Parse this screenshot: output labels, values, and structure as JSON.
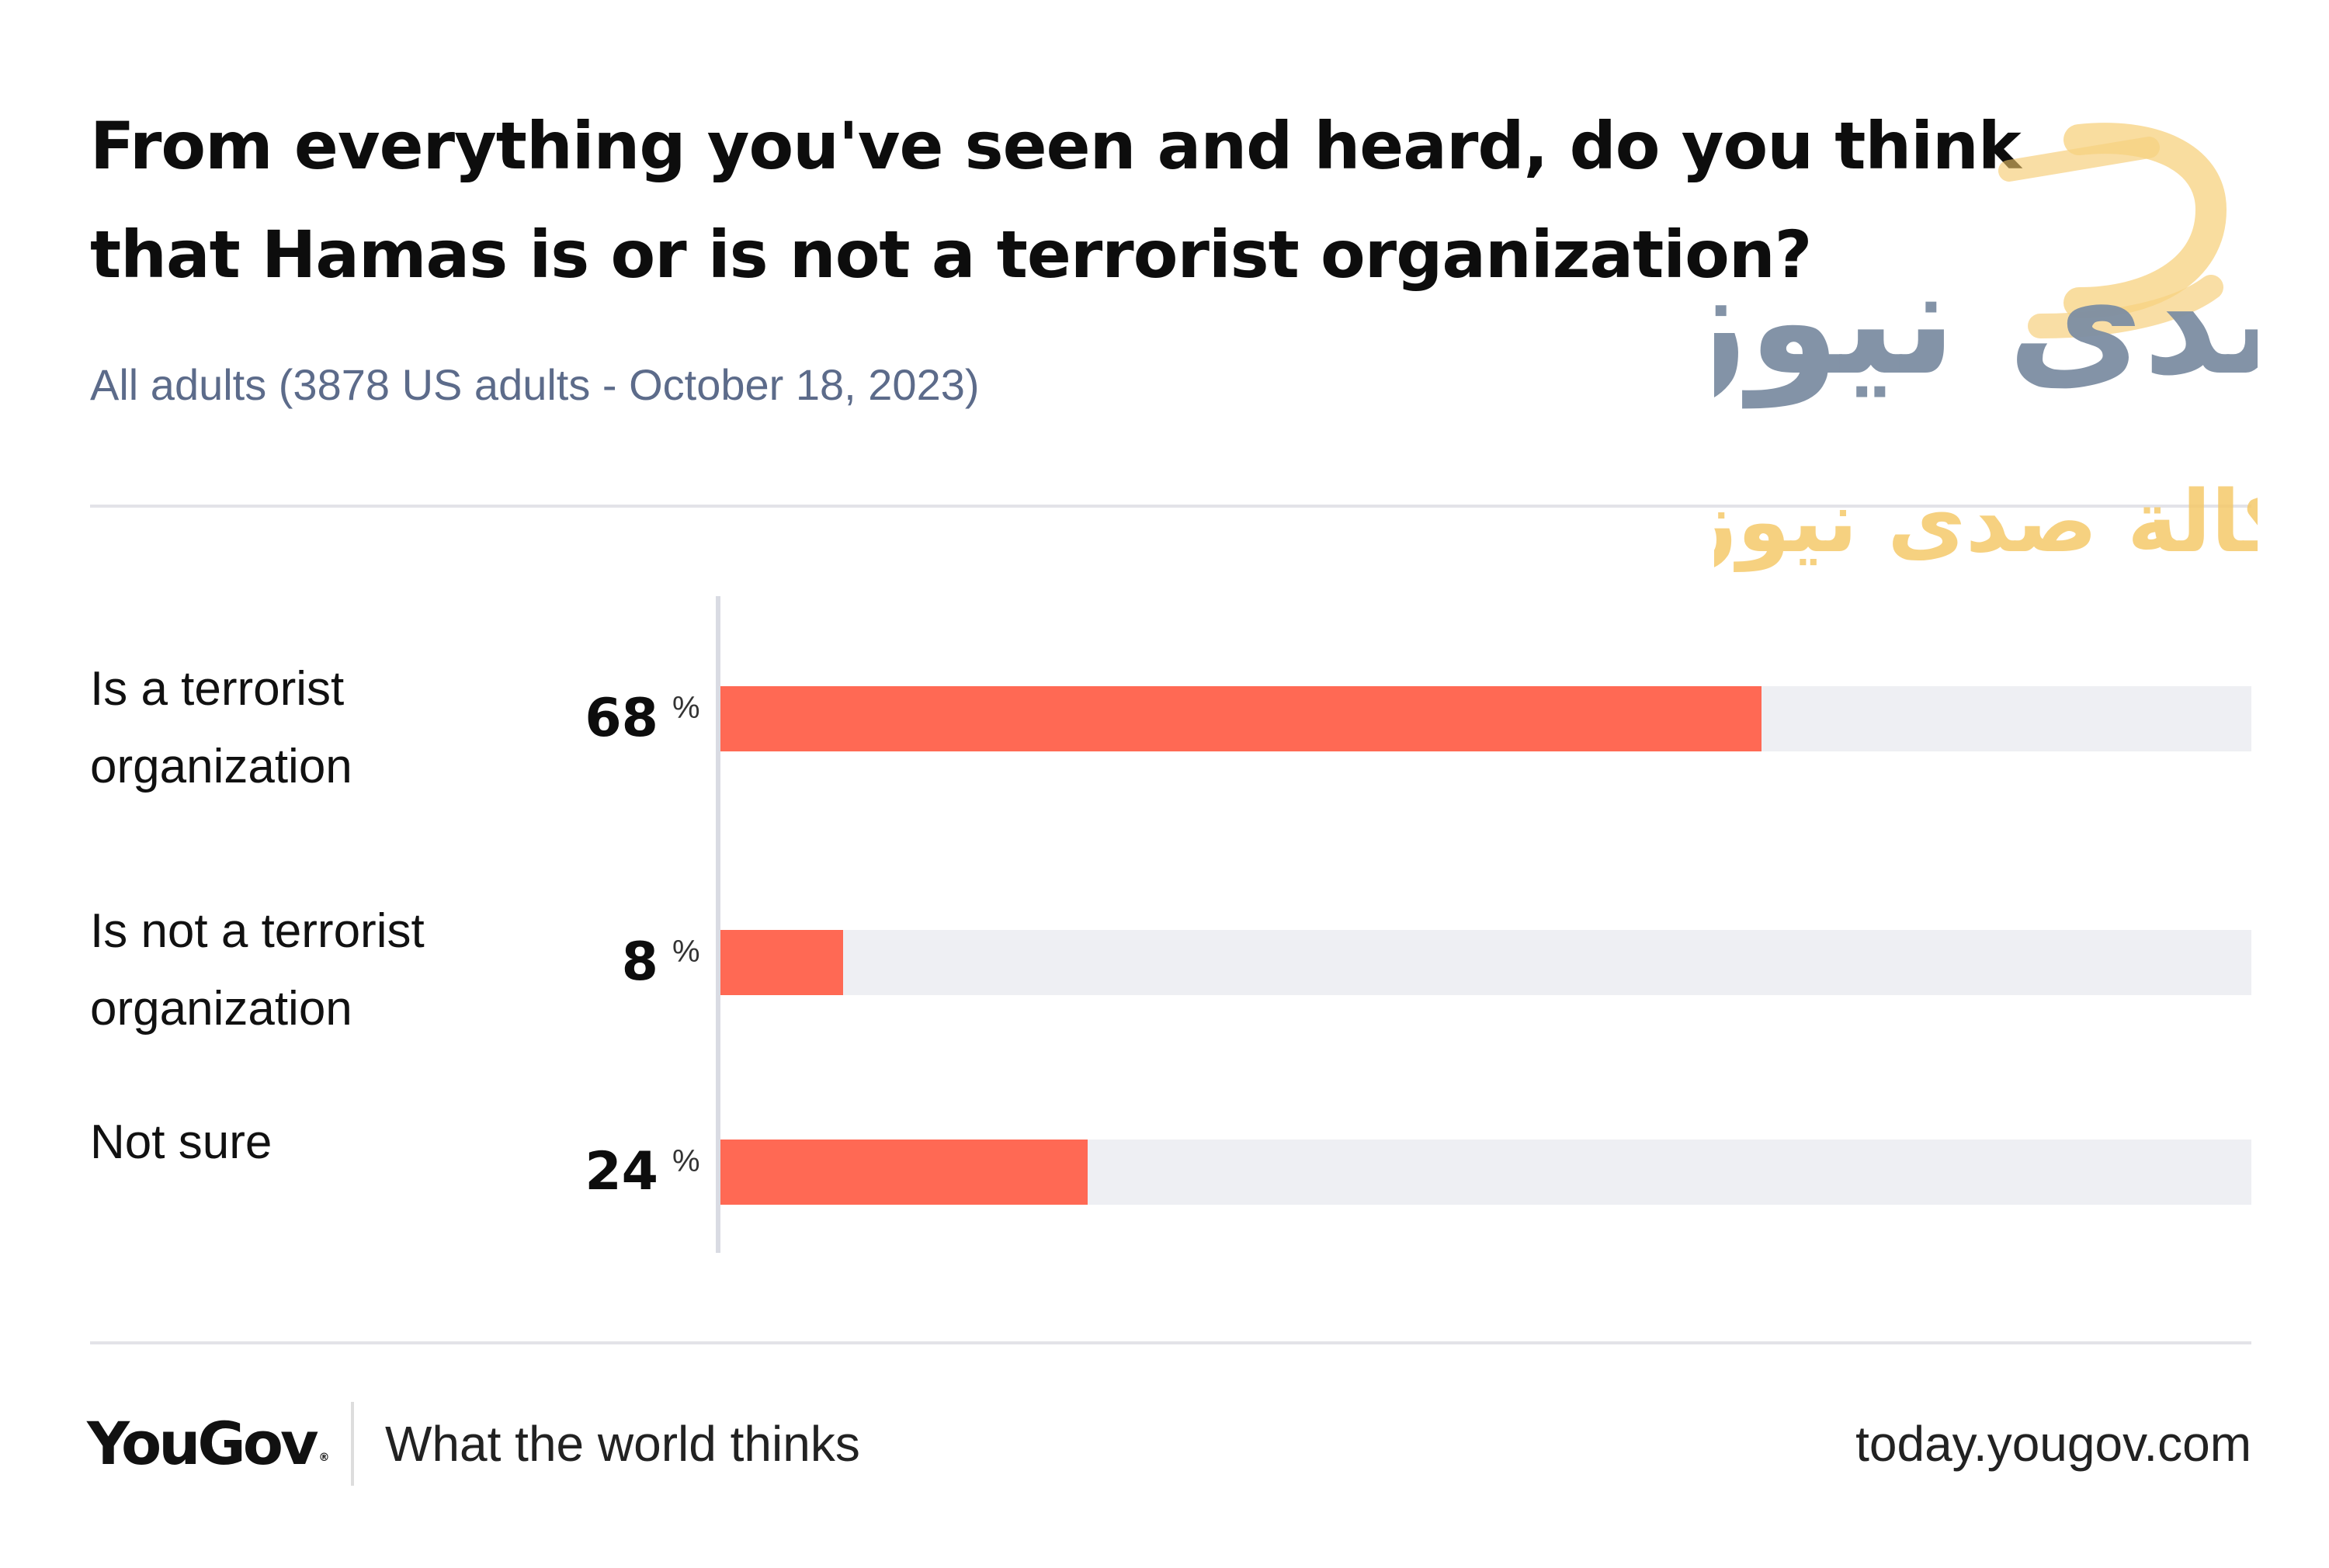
{
  "header": {
    "title": "From everything you've seen and heard, do you think that Hamas is or is not a terrorist organization?",
    "subtitle": "All adults (3878 US adults - October 18, 2023)"
  },
  "chart_data": {
    "type": "bar",
    "orientation": "horizontal",
    "categories": [
      "Is a terrorist organization",
      "Is not a terrorist organization",
      "Not sure"
    ],
    "values": [
      68,
      8,
      24
    ],
    "value_labels": [
      "68",
      "8",
      "24"
    ],
    "unit": "%",
    "xlim": [
      0,
      100
    ],
    "grid": false,
    "legend": "none",
    "title": "From everything you've seen and heard, do you think that Hamas is or is not a terrorist organization?",
    "subtitle": "All adults (3878 US adults - October 18, 2023)"
  },
  "watermark": {
    "logo_text": "صدى نيوز",
    "caption_text": "وكالة صدى نيوز"
  },
  "footer": {
    "logo": "YouGov",
    "logo_mark": "®",
    "tagline": "What the world thinks",
    "url": "today.yougov.com"
  },
  "colors": {
    "bar_fill": "#ff6954",
    "bar_track": "#eeeff3",
    "subtitle": "#5c6b8a",
    "watermark_gray": "#7d8ea3",
    "watermark_gold": "#f5c96a"
  }
}
